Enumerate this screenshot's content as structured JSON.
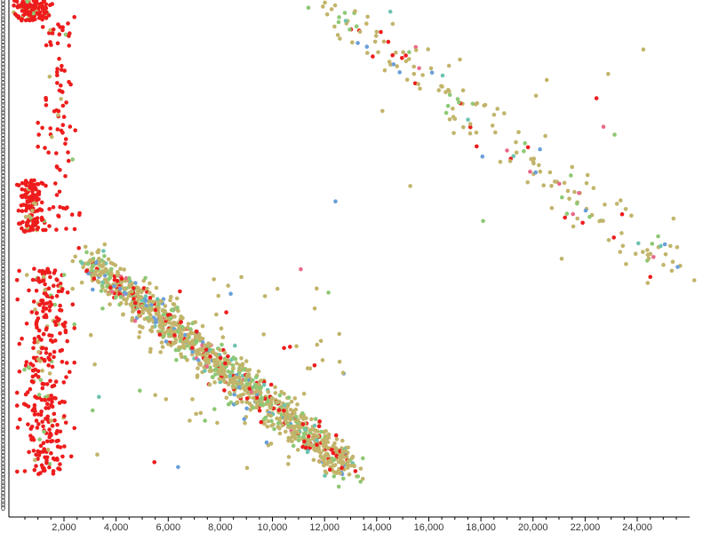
{
  "chart_data": {
    "type": "scatter",
    "title": "",
    "xlabel": "",
    "ylabel": "",
    "x_ticks": [
      "2,000",
      "4,000",
      "6,000",
      "8,000",
      "10,000",
      "12,000",
      "14,000",
      "16,000",
      "18,000",
      "20,000",
      "22,000",
      "24,000"
    ],
    "x_tick_values": [
      2000,
      4000,
      6000,
      8000,
      10000,
      12000,
      14000,
      16000,
      18000,
      20000,
      22000,
      24000
    ],
    "xlim": [
      0,
      25800
    ],
    "ylim": [
      0,
      1
    ],
    "grid": false,
    "legend": "none",
    "y_tick_labels_overlapping": true,
    "colors": {
      "red": "#ee1c1c",
      "olive": "#c2b46a",
      "green": "#8ec874",
      "blue": "#6a9fd8",
      "teal": "#6cc4b0",
      "pink": "#e86a88"
    },
    "clusters": [
      {
        "name": "",
        "x_range": [
          0,
          1600
        ],
        "y_range": [
          0.96,
          1.0
        ],
        "count": 120,
        "dominant_color": "red"
      },
      {
        "name": "",
        "x_range": [
          1000,
          2600
        ],
        "y_range": [
          0.55,
          0.98
        ],
        "count": 90,
        "dominant_color": "red"
      },
      {
        "name": "",
        "x_range": [
          200,
          1300
        ],
        "y_range": [
          0.55,
          0.65
        ],
        "count": 140,
        "dominant_color": "red"
      },
      {
        "name": "",
        "x_range": [
          200,
          2400
        ],
        "y_range": [
          0.08,
          0.48
        ],
        "count": 320,
        "dominant_color": "red"
      },
      {
        "name": "",
        "x_range": [
          3000,
          13000
        ],
        "y_range": [
          0.09,
          0.49
        ],
        "count": 1300,
        "dominant_color": "olive",
        "trend": "decreasing"
      },
      {
        "name": "",
        "x_range": [
          12000,
          25500
        ],
        "y_range": [
          0.47,
          1.0
        ],
        "count": 220,
        "dominant_color": "olive",
        "trend": "decreasing"
      }
    ]
  }
}
